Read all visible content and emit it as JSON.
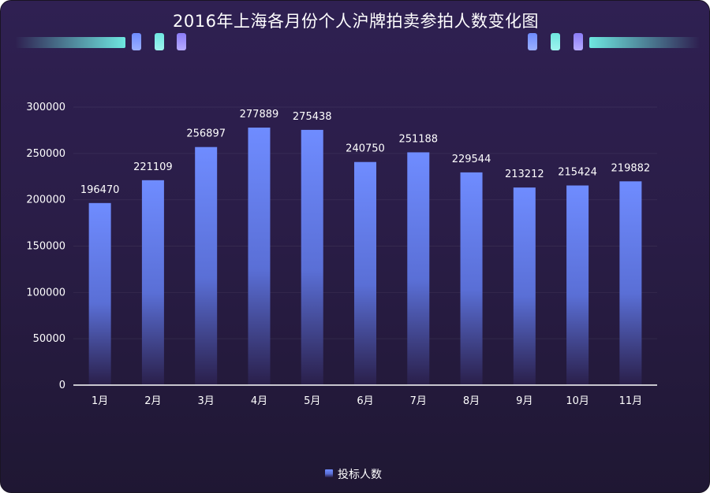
{
  "title": "2016年上海各月份个人沪牌拍卖参拍人数变化图",
  "colors": {
    "bar_top": "#6f8cff",
    "bar_bottom": "#2a1f4a",
    "accent_cyan": "#6ee7e0",
    "accent_purple": "#8b7cf6"
  },
  "chart_data": {
    "type": "bar",
    "title": "2016年上海各月份个人沪牌拍卖参拍人数变化图",
    "categories": [
      "1月",
      "2月",
      "3月",
      "4月",
      "5月",
      "6月",
      "7月",
      "8月",
      "9月",
      "10月",
      "11月"
    ],
    "series": [
      {
        "name": "投标人数",
        "values": [
          196470,
          221109,
          256897,
          277889,
          275438,
          240750,
          251188,
          229544,
          213212,
          215424,
          219882
        ]
      }
    ],
    "xlabel": "",
    "ylabel": "",
    "ylim": [
      0,
      300000
    ],
    "yticks": [
      0,
      50000,
      100000,
      150000,
      200000,
      250000,
      300000
    ],
    "grid": true,
    "legend": "bottom-center",
    "data_labels": true
  }
}
